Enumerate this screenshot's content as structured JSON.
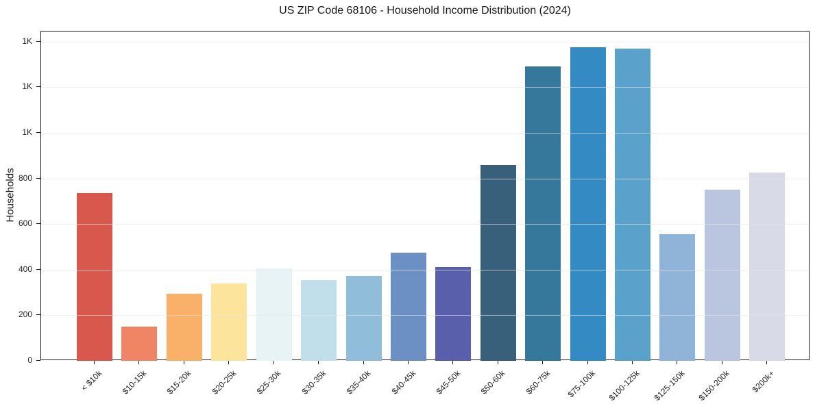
{
  "chart_data": {
    "type": "bar",
    "title": "US ZIP Code 68106 - Household Income Distribution (2024)",
    "xlabel": "",
    "ylabel": "Households",
    "categories": [
      "< $10k",
      "$10-15k",
      "$15-20k",
      "$20-25k",
      "$25-30k",
      "$30-35k",
      "$35-40k",
      "$40-45k",
      "$45-50k",
      "$50-60k",
      "$60-75k",
      "$75-100k",
      "$100-125k",
      "$125-150k",
      "$150-200k",
      "$200k+"
    ],
    "values": [
      735,
      150,
      295,
      340,
      405,
      355,
      372,
      475,
      412,
      860,
      1290,
      1375,
      1370,
      555,
      750,
      825
    ],
    "bar_colors": [
      "#d8584e",
      "#f08566",
      "#f9b069",
      "#fce49c",
      "#e8f3f5",
      "#c0dfeb",
      "#90bdda",
      "#6c90c3",
      "#5a5fac",
      "#38607a",
      "#36789c",
      "#348bc3",
      "#5aa2cc",
      "#8fb4d8",
      "#bac6e0",
      "#d8dae8"
    ],
    "yticks": {
      "values": [
        0,
        200,
        400,
        600,
        800,
        1000,
        1200,
        1400
      ],
      "labels": [
        "0",
        "200",
        "400",
        "600",
        "800",
        "1K",
        "1K",
        "1K"
      ]
    },
    "ylim": [
      0,
      1444
    ],
    "grid": "horizontal",
    "grid_color": "#e7e7e7",
    "spine_color": "#1a1a1a",
    "background": "#ffffff",
    "legend": "none",
    "x_tick_rotation": 45
  }
}
